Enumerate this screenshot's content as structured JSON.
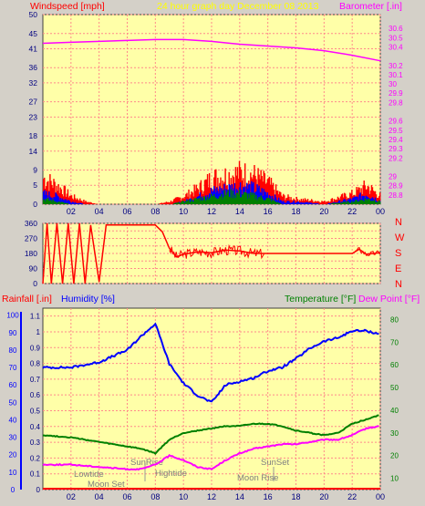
{
  "header": {
    "left": "Windspeed [mph]",
    "center": "24 hour graph day   December 08 2013",
    "right": "Barometer [.in]"
  },
  "panel3_header": {
    "rainfall": "Rainfall [.in]",
    "humidity": "Humidity [%]",
    "temperature": "Temperature [°F]",
    "dewpoint": "Dew Point [°F]"
  },
  "compass": [
    "N",
    "W",
    "S",
    "E",
    "N"
  ],
  "events": [
    "Lowtide",
    "Moon Set",
    "SunRise",
    "Hightide",
    "SunSet",
    "Moon Rise"
  ],
  "colors": {
    "plot_bg": "#ffffa8",
    "grid": "#ff8a8a",
    "wind": "#ff0000",
    "gust_blue": "#0000ff",
    "gust_green": "#008000",
    "barometer": "#ff00ff",
    "humidity": "#0000ff",
    "temperature": "#008000",
    "dewpoint": "#ff00ff",
    "direction": "#ff0000",
    "title_yellow": "#ffff00"
  },
  "chart_data": [
    {
      "type": "area",
      "panel": "wind",
      "x_ticks": [
        "02",
        "04",
        "06",
        "08",
        "10",
        "12",
        "14",
        "16",
        "18",
        "20",
        "22",
        "00"
      ],
      "left_axis_label": "Windspeed [mph]",
      "left_ticks": [
        0,
        5,
        9,
        14,
        18,
        23,
        27,
        32,
        36,
        41,
        45,
        50
      ],
      "left_ylim": [
        0,
        50
      ],
      "right_axis_label": "Barometer [.in]",
      "right_ticks": [
        28.8,
        28.9,
        29,
        29.2,
        29.3,
        29.4,
        29.5,
        29.6,
        29.8,
        29.9,
        30,
        30.1,
        30.2,
        30.4,
        30.5,
        30.6
      ],
      "right_ylim": [
        28.7,
        30.75
      ],
      "barometer": {
        "x": [
          0,
          2,
          4,
          6,
          8,
          10,
          12,
          14,
          16,
          18,
          20,
          22,
          24
        ],
        "y": [
          30.44,
          30.45,
          30.46,
          30.47,
          30.48,
          30.48,
          30.46,
          30.43,
          30.41,
          30.39,
          30.36,
          30.31,
          30.25
        ]
      },
      "wind_gust_max": {
        "x": [
          0,
          1,
          2,
          3,
          4,
          6,
          8,
          9,
          10,
          11,
          12,
          13,
          14,
          15,
          16,
          17,
          18,
          20,
          22,
          23,
          24
        ],
        "y": [
          10,
          7,
          3,
          1,
          0,
          0,
          0,
          1,
          3,
          6,
          10,
          11,
          12,
          11,
          8,
          3,
          2,
          1,
          4,
          7,
          3
        ]
      },
      "wind_avg_max": {
        "x": [
          0,
          1,
          2,
          3,
          4,
          6,
          8,
          9,
          10,
          11,
          12,
          13,
          14,
          15,
          16,
          17,
          18,
          20,
          22,
          23,
          24
        ],
        "y": [
          4,
          3,
          1,
          0,
          0,
          0,
          0,
          0,
          1,
          3,
          5,
          6,
          7,
          6,
          4,
          1,
          1,
          0,
          2,
          4,
          1
        ]
      },
      "wind_green_max": {
        "x": [
          0,
          1,
          2,
          3,
          4,
          6,
          8,
          9,
          10,
          11,
          12,
          13,
          14,
          15,
          16,
          17,
          18,
          20,
          22,
          23,
          24
        ],
        "y": [
          2,
          1,
          0,
          0,
          0,
          0,
          0,
          0,
          1,
          2,
          3,
          4,
          4,
          3,
          2,
          0,
          0,
          0,
          1,
          2,
          1
        ]
      }
    },
    {
      "type": "line",
      "panel": "wind_direction",
      "left_ticks": [
        0,
        45,
        90,
        135,
        180,
        225,
        270,
        315,
        360
      ],
      "left_ylim": [
        0,
        360
      ],
      "right_labels": [
        "N",
        "W",
        "S",
        "E",
        "N"
      ],
      "direction": {
        "x": [
          0,
          0.3,
          0.6,
          1,
          1.4,
          1.8,
          2.2,
          2.6,
          3,
          3.4,
          4,
          4.5,
          6,
          7,
          8,
          8.5,
          9,
          9.5,
          10,
          11,
          12,
          13,
          14,
          15,
          16,
          17,
          18,
          20,
          22,
          22.5,
          23,
          24
        ],
        "y": [
          0,
          360,
          0,
          360,
          0,
          360,
          0,
          360,
          0,
          350,
          10,
          350,
          350,
          350,
          350,
          310,
          210,
          160,
          175,
          190,
          185,
          200,
          195,
          180,
          180,
          180,
          180,
          180,
          180,
          205,
          175,
          185
        ]
      }
    },
    {
      "type": "line",
      "panel": "climate",
      "x_ticks": [
        "02",
        "04",
        "06",
        "08",
        "10",
        "12",
        "14",
        "16",
        "18",
        "20",
        "22",
        "00"
      ],
      "rainfall_ticks": [
        0,
        0.1,
        0.2,
        0.3,
        0.4,
        0.5,
        0.6,
        0.7,
        0.8,
        0.9,
        1,
        1.1
      ],
      "rainfall_ylim": [
        0,
        1.15
      ],
      "humidity_ticks": [
        0,
        10,
        20,
        30,
        40,
        50,
        60,
        70,
        80,
        90,
        100
      ],
      "humidity_ylim": [
        0,
        104
      ],
      "temperature_ticks": [
        10,
        20,
        30,
        40,
        50,
        60,
        70,
        80
      ],
      "temperature_ylim": [
        5,
        85
      ],
      "humidity": {
        "name": "Humidity [%]",
        "x": [
          0,
          2,
          4,
          6,
          7,
          8,
          9,
          10,
          11,
          12,
          13,
          14,
          15,
          16,
          17,
          18,
          19,
          20,
          21,
          22,
          23,
          24
        ],
        "y": [
          70,
          70,
          73,
          80,
          88,
          95,
          72,
          61,
          54,
          50,
          60,
          62,
          64,
          68,
          70,
          75,
          81,
          85,
          87,
          91,
          91,
          89
        ]
      },
      "temperature": {
        "name": "Temperature [°F]",
        "x": [
          0,
          2,
          4,
          6,
          7,
          8,
          9,
          10,
          11,
          12,
          13,
          14,
          15,
          16,
          17,
          18,
          19,
          20,
          21,
          22,
          23,
          24
        ],
        "y": [
          29,
          28,
          26,
          24,
          23,
          21,
          27,
          30,
          31,
          32,
          33,
          33,
          34,
          34,
          33,
          31,
          30,
          29,
          30,
          34,
          36,
          38
        ]
      },
      "dew_point": {
        "name": "Dew Point [°F]",
        "x": [
          0,
          2,
          4,
          6,
          7,
          8,
          9,
          10,
          11,
          12,
          13,
          14,
          15,
          16,
          17,
          18,
          19,
          20,
          21,
          22,
          23,
          24
        ],
        "y": [
          16,
          16,
          15,
          14,
          14,
          16,
          20,
          18,
          15,
          14,
          18,
          21,
          23,
          24,
          25,
          25,
          26,
          27,
          27,
          29,
          32,
          33
        ]
      },
      "rainfall": {
        "name": "Rainfall [.in]",
        "x": [
          0,
          24
        ],
        "y": [
          0,
          0
        ]
      }
    }
  ]
}
